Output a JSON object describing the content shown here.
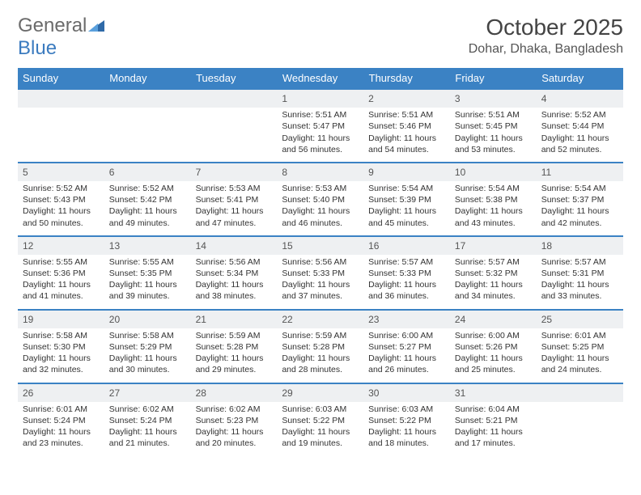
{
  "logo": {
    "word1": "General",
    "word2": "Blue"
  },
  "title": "October 2025",
  "location": "Dohar, Dhaka, Bangladesh",
  "colors": {
    "header_bg": "#3b82c4",
    "header_text": "#ffffff",
    "daynum_bg": "#eef0f2",
    "text": "#333333",
    "logo_gray": "#6b6b6b",
    "logo_blue": "#3b7bbf",
    "row_divider": "#3b82c4"
  },
  "typography": {
    "title_fontsize": 28,
    "location_fontsize": 16,
    "header_fontsize": 13,
    "daynum_fontsize": 12,
    "cell_fontsize": 10.5
  },
  "day_headers": [
    "Sunday",
    "Monday",
    "Tuesday",
    "Wednesday",
    "Thursday",
    "Friday",
    "Saturday"
  ],
  "weeks": [
    [
      null,
      null,
      null,
      {
        "n": "1",
        "sunrise": "5:51 AM",
        "sunset": "5:47 PM",
        "daylight": "11 hours and 56 minutes."
      },
      {
        "n": "2",
        "sunrise": "5:51 AM",
        "sunset": "5:46 PM",
        "daylight": "11 hours and 54 minutes."
      },
      {
        "n": "3",
        "sunrise": "5:51 AM",
        "sunset": "5:45 PM",
        "daylight": "11 hours and 53 minutes."
      },
      {
        "n": "4",
        "sunrise": "5:52 AM",
        "sunset": "5:44 PM",
        "daylight": "11 hours and 52 minutes."
      }
    ],
    [
      {
        "n": "5",
        "sunrise": "5:52 AM",
        "sunset": "5:43 PM",
        "daylight": "11 hours and 50 minutes."
      },
      {
        "n": "6",
        "sunrise": "5:52 AM",
        "sunset": "5:42 PM",
        "daylight": "11 hours and 49 minutes."
      },
      {
        "n": "7",
        "sunrise": "5:53 AM",
        "sunset": "5:41 PM",
        "daylight": "11 hours and 47 minutes."
      },
      {
        "n": "8",
        "sunrise": "5:53 AM",
        "sunset": "5:40 PM",
        "daylight": "11 hours and 46 minutes."
      },
      {
        "n": "9",
        "sunrise": "5:54 AM",
        "sunset": "5:39 PM",
        "daylight": "11 hours and 45 minutes."
      },
      {
        "n": "10",
        "sunrise": "5:54 AM",
        "sunset": "5:38 PM",
        "daylight": "11 hours and 43 minutes."
      },
      {
        "n": "11",
        "sunrise": "5:54 AM",
        "sunset": "5:37 PM",
        "daylight": "11 hours and 42 minutes."
      }
    ],
    [
      {
        "n": "12",
        "sunrise": "5:55 AM",
        "sunset": "5:36 PM",
        "daylight": "11 hours and 41 minutes."
      },
      {
        "n": "13",
        "sunrise": "5:55 AM",
        "sunset": "5:35 PM",
        "daylight": "11 hours and 39 minutes."
      },
      {
        "n": "14",
        "sunrise": "5:56 AM",
        "sunset": "5:34 PM",
        "daylight": "11 hours and 38 minutes."
      },
      {
        "n": "15",
        "sunrise": "5:56 AM",
        "sunset": "5:33 PM",
        "daylight": "11 hours and 37 minutes."
      },
      {
        "n": "16",
        "sunrise": "5:57 AM",
        "sunset": "5:33 PM",
        "daylight": "11 hours and 36 minutes."
      },
      {
        "n": "17",
        "sunrise": "5:57 AM",
        "sunset": "5:32 PM",
        "daylight": "11 hours and 34 minutes."
      },
      {
        "n": "18",
        "sunrise": "5:57 AM",
        "sunset": "5:31 PM",
        "daylight": "11 hours and 33 minutes."
      }
    ],
    [
      {
        "n": "19",
        "sunrise": "5:58 AM",
        "sunset": "5:30 PM",
        "daylight": "11 hours and 32 minutes."
      },
      {
        "n": "20",
        "sunrise": "5:58 AM",
        "sunset": "5:29 PM",
        "daylight": "11 hours and 30 minutes."
      },
      {
        "n": "21",
        "sunrise": "5:59 AM",
        "sunset": "5:28 PM",
        "daylight": "11 hours and 29 minutes."
      },
      {
        "n": "22",
        "sunrise": "5:59 AM",
        "sunset": "5:28 PM",
        "daylight": "11 hours and 28 minutes."
      },
      {
        "n": "23",
        "sunrise": "6:00 AM",
        "sunset": "5:27 PM",
        "daylight": "11 hours and 26 minutes."
      },
      {
        "n": "24",
        "sunrise": "6:00 AM",
        "sunset": "5:26 PM",
        "daylight": "11 hours and 25 minutes."
      },
      {
        "n": "25",
        "sunrise": "6:01 AM",
        "sunset": "5:25 PM",
        "daylight": "11 hours and 24 minutes."
      }
    ],
    [
      {
        "n": "26",
        "sunrise": "6:01 AM",
        "sunset": "5:24 PM",
        "daylight": "11 hours and 23 minutes."
      },
      {
        "n": "27",
        "sunrise": "6:02 AM",
        "sunset": "5:24 PM",
        "daylight": "11 hours and 21 minutes."
      },
      {
        "n": "28",
        "sunrise": "6:02 AM",
        "sunset": "5:23 PM",
        "daylight": "11 hours and 20 minutes."
      },
      {
        "n": "29",
        "sunrise": "6:03 AM",
        "sunset": "5:22 PM",
        "daylight": "11 hours and 19 minutes."
      },
      {
        "n": "30",
        "sunrise": "6:03 AM",
        "sunset": "5:22 PM",
        "daylight": "11 hours and 18 minutes."
      },
      {
        "n": "31",
        "sunrise": "6:04 AM",
        "sunset": "5:21 PM",
        "daylight": "11 hours and 17 minutes."
      },
      null
    ]
  ],
  "labels": {
    "sunrise": "Sunrise:",
    "sunset": "Sunset:",
    "daylight": "Daylight:"
  }
}
